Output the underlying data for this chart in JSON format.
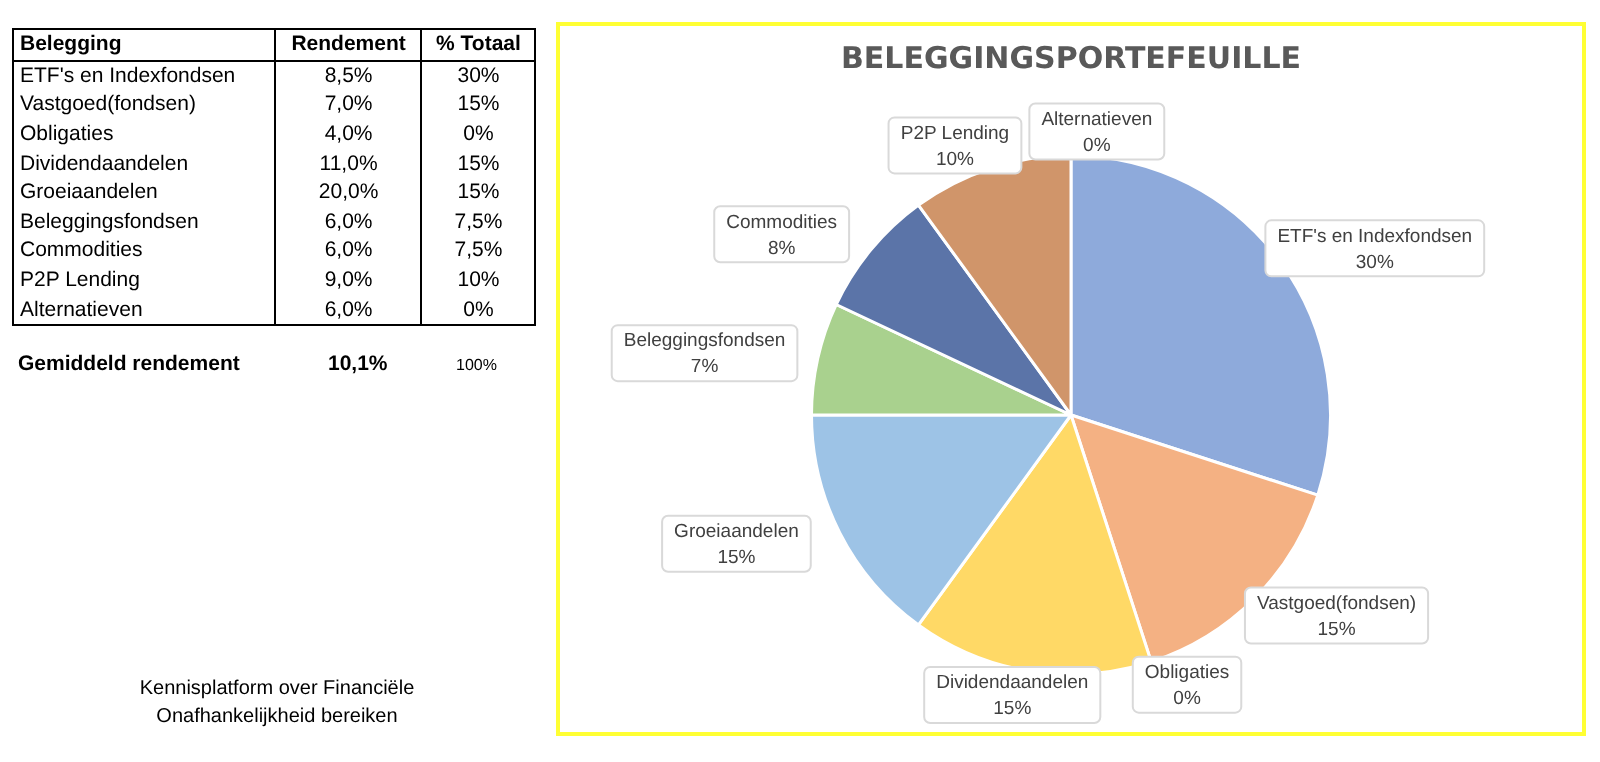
{
  "chart_data": [
    {
      "type": "other",
      "ylabel": "Belegging",
      "categories": [
        "ETF's en Indexfondsen",
        "Vastgoed(fondsen)",
        "Obligaties",
        "Dividendaandelen",
        "Groeiaandelen",
        "Beleggingsfondsen",
        "Commodities",
        "P2P Lending",
        "Alternatieven"
      ],
      "series": [
        {
          "name": "Rendement",
          "values": [
            8.5,
            7.0,
            4.0,
            11.0,
            20.0,
            6.0,
            6.0,
            9.0,
            6.0
          ],
          "value_labels": [
            "8,5%",
            "7,0%",
            "4,0%",
            "11,0%",
            "20,0%",
            "6,0%",
            "6,0%",
            "9,0%",
            "6,0%"
          ]
        },
        {
          "name": "% Totaal",
          "values": [
            30,
            15,
            0,
            15,
            15,
            7.5,
            7.5,
            10,
            0
          ],
          "value_labels": [
            "30%",
            "15%",
            "0%",
            "15%",
            "15%",
            "7,5%",
            "7,5%",
            "10%",
            "0%"
          ]
        }
      ],
      "annotations": [
        "Gemiddeld rendement",
        "10,1%",
        "100%",
        "Kennisplatform over Financiële Onafhankelijkheid bereiken"
      ]
    },
    {
      "type": "pie",
      "title": "BELEGGINGSPORTEFEUILLE",
      "categories": [
        "ETF's en Indexfondsen",
        "Vastgoed(fondsen)",
        "Obligaties",
        "Dividendaandelen",
        "Groeiaandelen",
        "Beleggingsfondsen",
        "Commodities",
        "P2P Lending",
        "Alternatieven"
      ],
      "values": [
        30,
        15,
        0,
        15,
        15,
        7,
        8,
        10,
        0
      ],
      "value_labels": [
        "30%",
        "15%",
        "0%",
        "15%",
        "15%",
        "7%",
        "8%",
        "10%",
        "0%"
      ],
      "colors": [
        "#8eaadb",
        "#f4b183",
        "#a5a5a5",
        "#ffd966",
        "#9dc3e6",
        "#a9d18e",
        "#5b74a8",
        "#d0956a",
        "#a5a5a5"
      ],
      "legend": false
    }
  ]
}
